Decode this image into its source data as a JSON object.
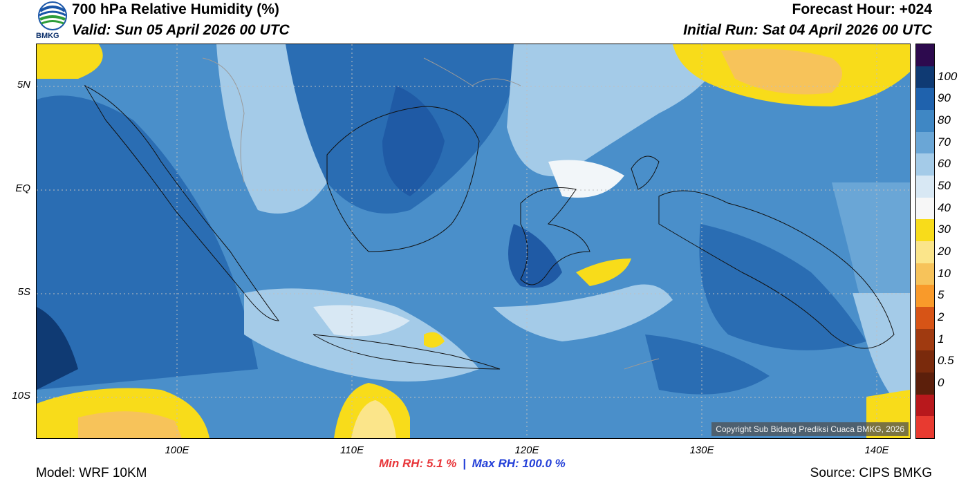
{
  "header": {
    "title": "700 hPa Relative Humidity (%)",
    "valid": "Valid: Sun 05 April 2026 00 UTC",
    "forecast_hour": "Forecast Hour: +024",
    "initial_run": "Initial Run: Sat 04 April 2026 00 UTC",
    "logo_text": "BMKG"
  },
  "map": {
    "lat_ticks": [
      "5N",
      "EQ",
      "5S",
      "10S"
    ],
    "lon_ticks": [
      "100E",
      "110E",
      "120E",
      "130E",
      "140E"
    ],
    "copyright": "Copyright Sub Bidang Prediksi Cuaca BMKG, 2026"
  },
  "stats": {
    "min_label": "Min RH:",
    "min_value": "5.1 %",
    "separator": "|",
    "max_label": "Max RH:",
    "max_value": "100.0 %"
  },
  "footer": {
    "model": "Model: WRF 10KM",
    "source": "Source: CIPS BMKG"
  },
  "colorbar": {
    "labels": [
      "100",
      "90",
      "80",
      "70",
      "60",
      "50",
      "40",
      "30",
      "20",
      "10",
      "5",
      "2",
      "1",
      "0.5",
      "0"
    ],
    "colors": [
      "#2d0a4e",
      "#0f3a73",
      "#1f62ad",
      "#3f87c4",
      "#6aa6d6",
      "#a4cbe8",
      "#d8e8f4",
      "#f7f7f7",
      "#f8dc1a",
      "#fbe58a",
      "#f7c35a",
      "#f99a2a",
      "#d75416",
      "#a03a10",
      "#7a2a0c",
      "#5c1f0b",
      "#b8181c",
      "#e83a30"
    ]
  }
}
